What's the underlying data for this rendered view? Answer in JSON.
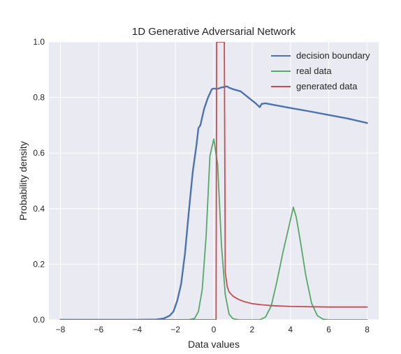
{
  "chart_data": {
    "type": "line",
    "title": "1D Generative Adversarial Network",
    "xlabel": "Data values",
    "ylabel": "Probability density",
    "xlim": [
      -8.6,
      8.6
    ],
    "ylim": [
      0.0,
      1.0
    ],
    "xticks": [
      -8,
      -6,
      -4,
      -2,
      0,
      2,
      4,
      6,
      8
    ],
    "xtick_labels": [
      "−8",
      "−6",
      "−4",
      "−2",
      "0",
      "2",
      "4",
      "6",
      "8"
    ],
    "yticks": [
      0.0,
      0.2,
      0.4,
      0.6,
      0.8,
      1.0
    ],
    "ytick_labels": [
      "0.0",
      "0.2",
      "0.4",
      "0.6",
      "0.8",
      "1.0"
    ],
    "grid": true,
    "legend_position": "top-right",
    "background_color": "#eaeaf2",
    "series": [
      {
        "name": "decision boundary",
        "color": "#4c72b0",
        "points": [
          [
            -8,
            0.0
          ],
          [
            -4,
            0.0
          ],
          [
            -3,
            0.001
          ],
          [
            -2.6,
            0.005
          ],
          [
            -2.3,
            0.015
          ],
          [
            -2.1,
            0.03
          ],
          [
            -1.9,
            0.07
          ],
          [
            -1.7,
            0.13
          ],
          [
            -1.5,
            0.24
          ],
          [
            -1.3,
            0.39
          ],
          [
            -1.1,
            0.53
          ],
          [
            -0.9,
            0.63
          ],
          [
            -0.8,
            0.69
          ],
          [
            -0.7,
            0.7
          ],
          [
            -0.5,
            0.76
          ],
          [
            -0.3,
            0.8
          ],
          [
            -0.1,
            0.83
          ],
          [
            0.0,
            0.832
          ],
          [
            0.2,
            0.831
          ],
          [
            0.4,
            0.836
          ],
          [
            0.7,
            0.84
          ],
          [
            0.8,
            0.835
          ],
          [
            1.0,
            0.83
          ],
          [
            1.4,
            0.822
          ],
          [
            1.8,
            0.8
          ],
          [
            2.2,
            0.778
          ],
          [
            2.4,
            0.765
          ],
          [
            2.5,
            0.777
          ],
          [
            2.7,
            0.779
          ],
          [
            3.0,
            0.775
          ],
          [
            4.0,
            0.762
          ],
          [
            5.0,
            0.75
          ],
          [
            6.0,
            0.737
          ],
          [
            7.0,
            0.724
          ],
          [
            8.0,
            0.708
          ]
        ]
      },
      {
        "name": "real data",
        "color": "#55a868",
        "points": [
          [
            -8,
            0.0
          ],
          [
            -1.3,
            0.0
          ],
          [
            -1.0,
            0.005
          ],
          [
            -0.8,
            0.03
          ],
          [
            -0.6,
            0.11
          ],
          [
            -0.4,
            0.3
          ],
          [
            -0.2,
            0.59
          ],
          [
            0.0,
            0.65
          ],
          [
            0.2,
            0.56
          ],
          [
            0.4,
            0.27
          ],
          [
            0.6,
            0.09
          ],
          [
            0.8,
            0.02
          ],
          [
            1.0,
            0.004
          ],
          [
            1.3,
            0.0
          ],
          [
            2.4,
            0.0
          ],
          [
            2.7,
            0.01
          ],
          [
            3.0,
            0.05
          ],
          [
            3.3,
            0.14
          ],
          [
            3.6,
            0.24
          ],
          [
            3.9,
            0.33
          ],
          [
            4.15,
            0.405
          ],
          [
            4.3,
            0.37
          ],
          [
            4.5,
            0.29
          ],
          [
            4.8,
            0.16
          ],
          [
            5.1,
            0.06
          ],
          [
            5.4,
            0.015
          ],
          [
            5.7,
            0.002
          ],
          [
            6.0,
            0.0
          ],
          [
            8.0,
            0.0
          ]
        ]
      },
      {
        "name": "generated data",
        "color": "#c44e52",
        "points": [
          [
            -8,
            0.0
          ],
          [
            0.12,
            0.0
          ],
          [
            0.15,
            1.0
          ],
          [
            0.55,
            1.0
          ],
          [
            0.6,
            0.17
          ],
          [
            0.7,
            0.12
          ],
          [
            0.8,
            0.1
          ],
          [
            1.0,
            0.085
          ],
          [
            1.3,
            0.073
          ],
          [
            1.6,
            0.065
          ],
          [
            2.0,
            0.058
          ],
          [
            2.5,
            0.054
          ],
          [
            3.0,
            0.051
          ],
          [
            4.0,
            0.048
          ],
          [
            5.0,
            0.047
          ],
          [
            6.0,
            0.046
          ],
          [
            7.0,
            0.046
          ],
          [
            8.0,
            0.046
          ]
        ]
      }
    ]
  }
}
